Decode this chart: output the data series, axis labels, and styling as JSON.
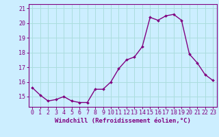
{
  "x": [
    0,
    1,
    2,
    3,
    4,
    5,
    6,
    7,
    8,
    9,
    10,
    11,
    12,
    13,
    14,
    15,
    16,
    17,
    18,
    19,
    20,
    21,
    22,
    23
  ],
  "y": [
    15.6,
    15.1,
    14.7,
    14.8,
    15.0,
    14.7,
    14.6,
    14.6,
    15.5,
    15.5,
    16.0,
    16.9,
    17.5,
    17.7,
    18.4,
    20.4,
    20.2,
    20.5,
    20.6,
    20.2,
    17.9,
    17.3,
    16.5,
    16.1
  ],
  "line_color": "#800080",
  "marker": "D",
  "marker_size": 2.0,
  "bg_color": "#cceeff",
  "grid_color": "#aadddd",
  "xlabel": "Windchill (Refroidissement éolien,°C)",
  "ylim": [
    14.3,
    21.3
  ],
  "xlim": [
    -0.5,
    23.5
  ],
  "yticks": [
    15,
    16,
    17,
    18,
    19,
    20,
    21
  ],
  "xticks": [
    0,
    1,
    2,
    3,
    4,
    5,
    6,
    7,
    8,
    9,
    10,
    11,
    12,
    13,
    14,
    15,
    16,
    17,
    18,
    19,
    20,
    21,
    22,
    23
  ],
  "xlabel_fontsize": 6.5,
  "tick_fontsize": 6.0,
  "line_width": 1.0
}
